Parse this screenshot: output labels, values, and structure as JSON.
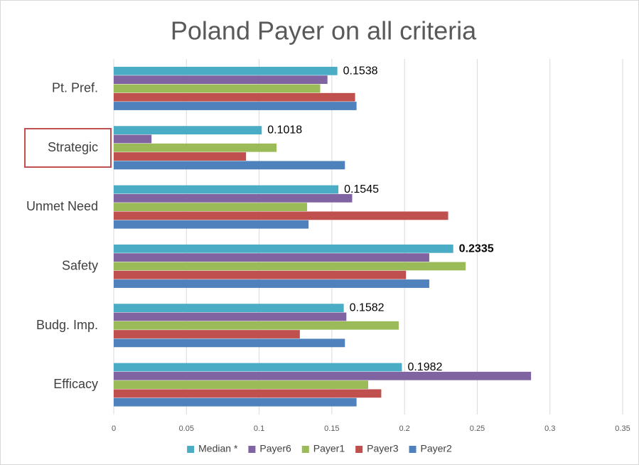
{
  "chart_data": {
    "type": "bar",
    "orientation": "horizontal",
    "title": "Poland Payer on all criteria",
    "categories": [
      "Pt. Pref.",
      "Strategic",
      "Unmet Need",
      "Safety",
      "Budg. Imp.",
      "Efficacy"
    ],
    "series": [
      {
        "name": "Median *",
        "color": "#4bacc6",
        "values": [
          0.1538,
          0.1018,
          0.1545,
          0.2335,
          0.1582,
          0.1982
        ],
        "data_labels": true,
        "bold_label_indices": [
          3
        ]
      },
      {
        "name": "Payer6",
        "color": "#8064a2",
        "values": [
          0.147,
          0.026,
          0.164,
          0.217,
          0.16,
          0.287
        ]
      },
      {
        "name": "Payer1",
        "color": "#9bbb59",
        "values": [
          0.142,
          0.112,
          0.133,
          0.242,
          0.196,
          0.175
        ]
      },
      {
        "name": "Payer3",
        "color": "#c0504d",
        "values": [
          0.166,
          0.091,
          0.23,
          0.201,
          0.128,
          0.184
        ]
      },
      {
        "name": "Payer2",
        "color": "#4f81bd",
        "values": [
          0.167,
          0.159,
          0.134,
          0.217,
          0.159,
          0.167
        ]
      }
    ],
    "xlim": [
      0,
      0.35
    ],
    "xticks": [
      0,
      0.05,
      0.1,
      0.15,
      0.2,
      0.25,
      0.3,
      0.35
    ],
    "grid": true,
    "legend": "bottom",
    "boxed_categories": [
      1
    ]
  }
}
